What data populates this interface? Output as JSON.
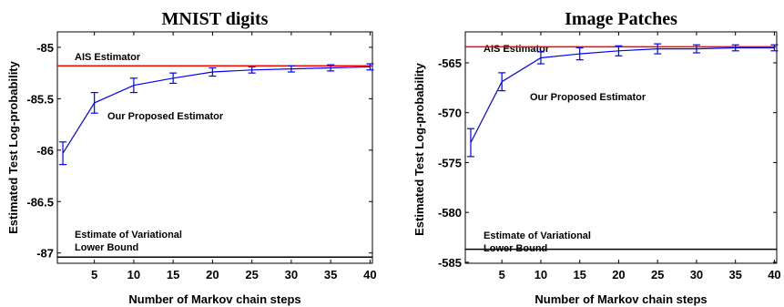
{
  "chart_data": [
    {
      "type": "line",
      "title": "MNIST digits",
      "xlabel": "Number of Markov chain steps",
      "ylabel": "Estimated Test Log-probability",
      "xlim": [
        0.3,
        40.3
      ],
      "ylim": [
        -87.1,
        -84.85
      ],
      "xticks": [
        5,
        10,
        15,
        20,
        25,
        30,
        35,
        40
      ],
      "yticks": [
        -85,
        -85.5,
        -86,
        -86.5,
        -87
      ],
      "series": [
        {
          "name": "Our Proposed Estimator",
          "color": "#0000ff",
          "x": [
            1,
            5,
            10,
            15,
            20,
            25,
            30,
            35,
            40
          ],
          "y": [
            -86.03,
            -85.54,
            -85.37,
            -85.3,
            -85.24,
            -85.22,
            -85.21,
            -85.2,
            -85.19
          ],
          "err": [
            0.11,
            0.1,
            0.07,
            0.05,
            0.04,
            0.03,
            0.03,
            0.03,
            0.03
          ]
        }
      ],
      "hlines": [
        {
          "label": "AIS Estimator",
          "y": -85.18,
          "color": "#ff0000"
        },
        {
          "label": "Estimate of Variational Lower Bound",
          "y": -87.04,
          "color": "#000000"
        }
      ],
      "annotations": [
        "AIS Estimator",
        "Our Proposed Estimator",
        "Estimate of Variational",
        "Lower Bound"
      ]
    },
    {
      "type": "line",
      "title": "Image Patches",
      "xlabel": "Number of Markov chain steps",
      "ylabel": "Estimated Test Log-probability",
      "xlim": [
        0.3,
        40.3
      ],
      "ylim": [
        -585.1,
        -561.9
      ],
      "xticks": [
        5,
        10,
        15,
        20,
        25,
        30,
        35,
        40
      ],
      "yticks": [
        -565,
        -570,
        -575,
        -580,
        -585
      ],
      "series": [
        {
          "name": "Our Proposed Estimator",
          "color": "#0000ff",
          "x": [
            1,
            5,
            10,
            15,
            20,
            25,
            30,
            35,
            40
          ],
          "y": [
            -573.0,
            -566.9,
            -564.5,
            -564.1,
            -563.8,
            -563.6,
            -563.6,
            -563.5,
            -563.5
          ],
          "err": [
            1.4,
            0.9,
            0.6,
            0.6,
            0.5,
            0.5,
            0.4,
            0.3,
            0.3
          ]
        }
      ],
      "hlines": [
        {
          "label": "AIS Estimator",
          "y": -563.4,
          "color": "#ff0000"
        },
        {
          "label": "Estimate of Variational Lower Bound",
          "y": -583.7,
          "color": "#000000"
        }
      ],
      "annotations": [
        "AIS Estimator",
        "Our Proposed Estimator",
        "Estimate of Variational",
        "Lower Bound"
      ]
    }
  ]
}
